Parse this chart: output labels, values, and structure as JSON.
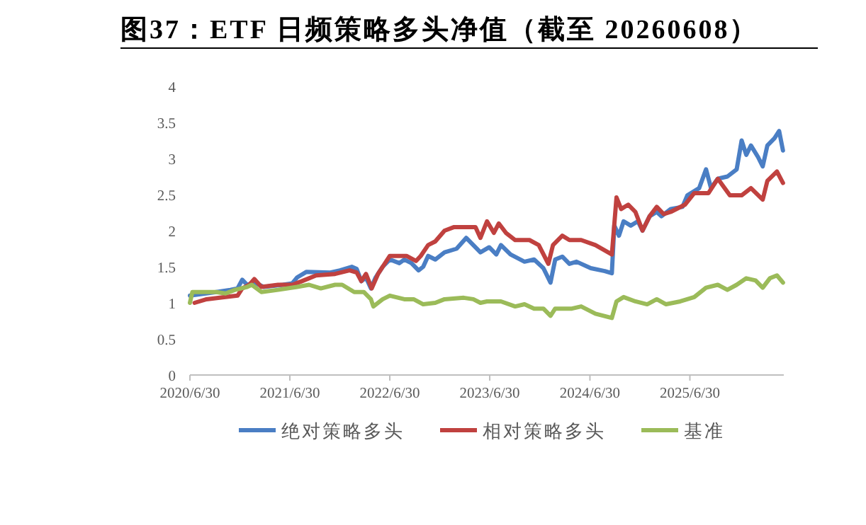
{
  "chart_data": {
    "type": "line",
    "title": "图37：ETF 日频策略多头净值（截至 20260608）",
    "xlim": [
      "2020-06-30",
      "2026-06-08"
    ],
    "xticks": [
      {
        "value": "2020-06-30",
        "label": "2020/6/30"
      },
      {
        "value": "2021-06-30",
        "label": "2021/6/30"
      },
      {
        "value": "2022-06-30",
        "label": "2022/6/30"
      },
      {
        "value": "2023-06-30",
        "label": "2023/6/30"
      },
      {
        "value": "2024-06-30",
        "label": "2024/6/30"
      },
      {
        "value": "2025-06-30",
        "label": "2025/6/30"
      }
    ],
    "ylim": [
      0,
      4
    ],
    "yticks": [
      0,
      0.5,
      1,
      1.5,
      2,
      2.5,
      3,
      3.5,
      4
    ],
    "grid": false,
    "legend": "bottom",
    "marker": "none",
    "line_style": "solid",
    "series": [
      {
        "name": "绝对策略多头",
        "color": "#4a7ec4",
        "x": [
          "2020-06-30",
          "2020-10-04",
          "2020-11-25",
          "2020-12-21",
          "2021-01-07",
          "2021-01-25",
          "2021-02-20",
          "2021-03-27",
          "2021-06-04",
          "2021-07-09",
          "2021-07-26",
          "2021-08-30",
          "2021-11-25",
          "2021-12-30",
          "2022-02-11",
          "2022-03-01",
          "2022-03-18",
          "2022-04-04",
          "2022-04-22",
          "2022-05-09",
          "2022-06-04",
          "2022-06-30",
          "2022-08-04",
          "2022-08-22",
          "2022-09-17",
          "2022-10-13",
          "2022-10-30",
          "2022-11-17",
          "2022-12-13",
          "2023-01-16",
          "2023-03-01",
          "2023-04-05",
          "2023-05-01",
          "2023-05-27",
          "2023-06-28",
          "2023-07-24",
          "2023-08-10",
          "2023-09-14",
          "2023-11-04",
          "2023-12-09",
          "2024-01-12",
          "2024-02-07",
          "2024-02-24",
          "2024-03-21",
          "2024-04-16",
          "2024-05-12",
          "2024-07-03",
          "2024-08-23",
          "2024-09-18",
          "2024-09-27",
          "2024-10-14",
          "2024-10-31",
          "2024-11-26",
          "2024-12-22",
          "2025-01-08",
          "2025-02-03",
          "2025-03-01",
          "2025-03-18",
          "2025-04-21",
          "2025-06-03",
          "2025-06-21",
          "2025-08-03",
          "2025-08-28",
          "2025-09-15",
          "2025-10-10",
          "2025-11-14",
          "2025-12-18",
          "2026-01-05",
          "2026-01-22",
          "2026-02-08",
          "2026-03-06",
          "2026-03-23",
          "2026-04-09",
          "2026-05-05",
          "2026-05-22",
          "2026-06-05"
        ],
        "values": [
          1.1,
          1.15,
          1.18,
          1.2,
          1.32,
          1.25,
          1.28,
          1.22,
          1.25,
          1.27,
          1.35,
          1.43,
          1.42,
          1.45,
          1.5,
          1.47,
          1.3,
          1.35,
          1.2,
          1.35,
          1.5,
          1.6,
          1.55,
          1.6,
          1.55,
          1.45,
          1.5,
          1.65,
          1.6,
          1.7,
          1.75,
          1.9,
          1.8,
          1.7,
          1.77,
          1.67,
          1.8,
          1.67,
          1.57,
          1.6,
          1.48,
          1.28,
          1.6,
          1.64,
          1.54,
          1.57,
          1.48,
          1.44,
          1.41,
          2.07,
          1.93,
          2.13,
          2.07,
          2.13,
          2.0,
          2.2,
          2.26,
          2.2,
          2.3,
          2.33,
          2.49,
          2.59,
          2.85,
          2.59,
          2.72,
          2.75,
          2.85,
          3.25,
          3.05,
          3.18,
          3.02,
          2.89,
          3.18,
          3.28,
          3.38,
          3.11
        ]
      },
      {
        "name": "相对策略多头",
        "color": "#c0413f",
        "x": [
          "2020-07-17",
          "2020-08-30",
          "2020-11-07",
          "2020-12-21",
          "2021-01-07",
          "2021-02-02",
          "2021-02-20",
          "2021-03-18",
          "2021-05-18",
          "2021-07-09",
          "2021-08-13",
          "2021-10-04",
          "2021-12-12",
          "2022-02-03",
          "2022-03-01",
          "2022-03-18",
          "2022-04-04",
          "2022-04-25",
          "2022-05-18",
          "2022-06-30",
          "2022-08-30",
          "2022-10-04",
          "2022-10-21",
          "2022-11-17",
          "2022-12-13",
          "2023-01-16",
          "2023-02-20",
          "2023-04-13",
          "2023-05-09",
          "2023-05-27",
          "2023-06-20",
          "2023-07-15",
          "2023-08-02",
          "2023-08-28",
          "2023-10-01",
          "2023-11-22",
          "2023-12-26",
          "2024-01-30",
          "2024-02-16",
          "2024-03-21",
          "2024-04-16",
          "2024-05-29",
          "2024-07-20",
          "2024-09-18",
          "2024-10-05",
          "2024-10-22",
          "2024-11-17",
          "2024-12-13",
          "2025-01-08",
          "2025-02-03",
          "2025-03-01",
          "2025-03-26",
          "2025-04-21",
          "2025-06-12",
          "2025-07-16",
          "2025-09-06",
          "2025-10-10",
          "2025-11-23",
          "2026-01-05",
          "2026-02-08",
          "2026-03-23",
          "2026-04-09",
          "2026-05-14",
          "2026-06-05"
        ],
        "values": [
          1.0,
          1.05,
          1.08,
          1.1,
          1.2,
          1.25,
          1.33,
          1.22,
          1.25,
          1.25,
          1.3,
          1.38,
          1.4,
          1.45,
          1.42,
          1.3,
          1.4,
          1.2,
          1.4,
          1.65,
          1.65,
          1.58,
          1.65,
          1.8,
          1.85,
          2.0,
          2.05,
          2.05,
          2.05,
          1.9,
          2.13,
          1.97,
          2.1,
          1.97,
          1.87,
          1.87,
          1.8,
          1.54,
          1.8,
          1.93,
          1.87,
          1.87,
          1.8,
          1.67,
          2.46,
          2.3,
          2.36,
          2.26,
          2.0,
          2.2,
          2.33,
          2.23,
          2.26,
          2.36,
          2.52,
          2.52,
          2.72,
          2.49,
          2.49,
          2.59,
          2.43,
          2.69,
          2.82,
          2.66
        ]
      },
      {
        "name": "基准",
        "color": "#9bbb59",
        "x": [
          "2020-06-30",
          "2020-07-09",
          "2020-10-04",
          "2020-11-07",
          "2020-12-12",
          "2021-01-25",
          "2021-02-11",
          "2021-03-18",
          "2021-05-18",
          "2021-07-26",
          "2021-09-08",
          "2021-10-21",
          "2021-12-12",
          "2022-01-07",
          "2022-02-20",
          "2022-03-27",
          "2022-04-22",
          "2022-05-01",
          "2022-06-04",
          "2022-06-30",
          "2022-08-22",
          "2022-09-25",
          "2022-10-30",
          "2022-12-13",
          "2023-01-16",
          "2023-03-27",
          "2023-05-01",
          "2023-05-27",
          "2023-06-20",
          "2023-08-10",
          "2023-10-01",
          "2023-11-04",
          "2023-12-09",
          "2024-01-12",
          "2024-02-07",
          "2024-02-24",
          "2024-04-25",
          "2024-05-29",
          "2024-07-20",
          "2024-09-18",
          "2024-10-05",
          "2024-10-31",
          "2024-12-13",
          "2025-01-25",
          "2025-03-01",
          "2025-04-04",
          "2025-05-26",
          "2025-07-16",
          "2025-08-28",
          "2025-10-10",
          "2025-11-14",
          "2025-12-18",
          "2026-01-22",
          "2026-02-25",
          "2026-03-23",
          "2026-04-18",
          "2026-05-14",
          "2026-06-05"
        ],
        "values": [
          1.0,
          1.15,
          1.15,
          1.13,
          1.18,
          1.22,
          1.25,
          1.15,
          1.18,
          1.22,
          1.25,
          1.2,
          1.25,
          1.25,
          1.15,
          1.15,
          1.05,
          0.95,
          1.05,
          1.1,
          1.05,
          1.05,
          0.98,
          1.0,
          1.05,
          1.07,
          1.05,
          1.0,
          1.02,
          1.02,
          0.95,
          0.98,
          0.92,
          0.92,
          0.82,
          0.92,
          0.92,
          0.95,
          0.85,
          0.79,
          1.02,
          1.08,
          1.02,
          0.98,
          1.05,
          0.98,
          1.02,
          1.08,
          1.21,
          1.25,
          1.18,
          1.25,
          1.34,
          1.31,
          1.21,
          1.34,
          1.38,
          1.28
        ]
      }
    ]
  }
}
